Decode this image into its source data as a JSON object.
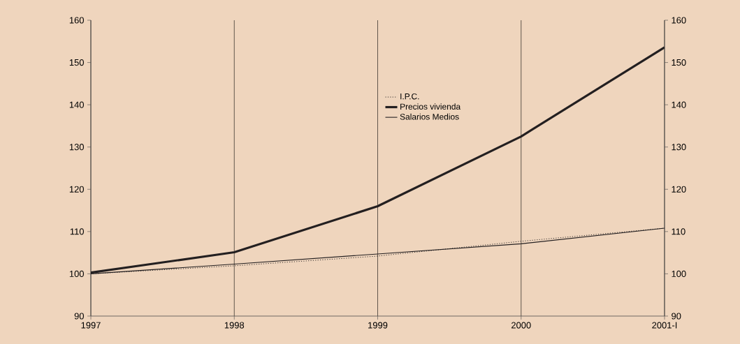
{
  "chart_data": {
    "type": "line",
    "categories": [
      "1997",
      "1998",
      "1999",
      "2000",
      "2001-I"
    ],
    "series": [
      {
        "name": "I.P.C.",
        "color": "#231f20",
        "line_style": "dotted",
        "values": [
          100,
          101.9,
          104.2,
          107.7,
          110.8
        ]
      },
      {
        "name": "Precios vivienda",
        "color": "#231f20",
        "line_style": "solid",
        "values": [
          100.3,
          105.1,
          116,
          132.5,
          153.6
        ]
      },
      {
        "name": "Salarios Medios",
        "color": "#231f20",
        "line_style": "solid",
        "values": [
          100,
          102.3,
          104.7,
          107.1,
          110.8
        ]
      }
    ],
    "ylim": [
      90,
      160
    ],
    "yticks": [
      90,
      100,
      110,
      120,
      130,
      140,
      150,
      160
    ],
    "y2lim": [
      90,
      160
    ],
    "y2ticks": [
      90,
      100,
      110,
      120,
      130,
      140,
      150,
      160
    ],
    "grid": "x",
    "legend": "top",
    "marker": "none"
  }
}
